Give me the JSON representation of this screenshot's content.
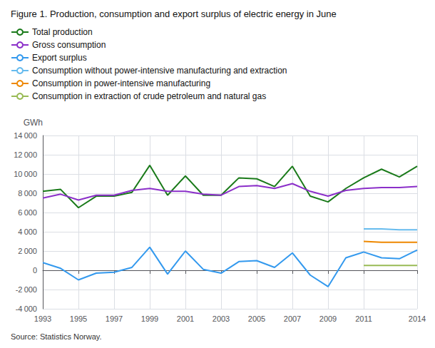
{
  "chart_data": {
    "type": "line",
    "title": "Figure 1. Production, consumption and export surplus of electric energy in June",
    "ylabel": "GWh",
    "source": "Source: Statistics Norway.",
    "x": [
      1993,
      1994,
      1995,
      1996,
      1997,
      1998,
      1999,
      2000,
      2001,
      2002,
      2003,
      2004,
      2005,
      2006,
      2007,
      2008,
      2009,
      2010,
      2011,
      2012,
      2013,
      2014
    ],
    "series": [
      {
        "name": "Total production",
        "color": "#1a7a1a",
        "values": [
          8200,
          8400,
          6500,
          7700,
          7700,
          8100,
          10900,
          7800,
          9800,
          7800,
          7800,
          9600,
          9500,
          8700,
          10800,
          7700,
          7100,
          8500,
          9600,
          10500,
          9700,
          10800
        ]
      },
      {
        "name": "Gross consumption",
        "color": "#8b2fc9",
        "values": [
          7500,
          7900,
          7300,
          7800,
          7800,
          8300,
          8500,
          8200,
          8200,
          7900,
          7800,
          8700,
          8800,
          8500,
          9000,
          8200,
          7700,
          8300,
          8500,
          8600,
          8600,
          8700
        ]
      },
      {
        "name": "Export surplus",
        "color": "#3399ee",
        "values": [
          800,
          200,
          -1000,
          -300,
          -200,
          300,
          2400,
          -400,
          2000,
          100,
          -300,
          900,
          1000,
          300,
          1800,
          -500,
          -1700,
          1300,
          1900,
          1300,
          1200,
          2100
        ]
      },
      {
        "name": "Consumption without power-intensive manufacturing and extraction",
        "color": "#66bbee",
        "values": [
          null,
          null,
          null,
          null,
          null,
          null,
          null,
          null,
          null,
          null,
          null,
          null,
          null,
          null,
          null,
          null,
          null,
          null,
          4300,
          4300,
          4200,
          4200
        ]
      },
      {
        "name": "Consumption in power-intensive manufacturing",
        "color": "#ee8800",
        "values": [
          null,
          null,
          null,
          null,
          null,
          null,
          null,
          null,
          null,
          null,
          null,
          null,
          null,
          null,
          null,
          null,
          null,
          null,
          3000,
          2900,
          2900,
          2900
        ]
      },
      {
        "name": "Consumption in extraction of crude petroleum and natural gas",
        "color": "#99bb55",
        "values": [
          null,
          null,
          null,
          null,
          null,
          null,
          null,
          null,
          null,
          null,
          null,
          null,
          null,
          null,
          null,
          null,
          null,
          null,
          500,
          500,
          500,
          500
        ]
      }
    ],
    "xlim": [
      1993,
      2014
    ],
    "xticks": [
      1993,
      1995,
      1997,
      1999,
      2001,
      2003,
      2005,
      2007,
      2009,
      2011,
      2014
    ],
    "ylim": [
      -4000,
      14000
    ],
    "yticks": [
      {
        "value": -4000,
        "label": "-4 000"
      },
      {
        "value": -2000,
        "label": "-2 000"
      },
      0,
      {
        "value": 2000,
        "label": "2 000"
      },
      {
        "value": 4000,
        "label": "4 000"
      },
      {
        "value": 6000,
        "label": "6 000"
      },
      {
        "value": 8000,
        "label": "8 000"
      },
      {
        "value": 10000,
        "label": "10 000"
      },
      {
        "value": 12000,
        "label": "12 000"
      },
      {
        "value": 14000,
        "label": "14 000"
      }
    ],
    "grid": true,
    "legend": "top"
  }
}
